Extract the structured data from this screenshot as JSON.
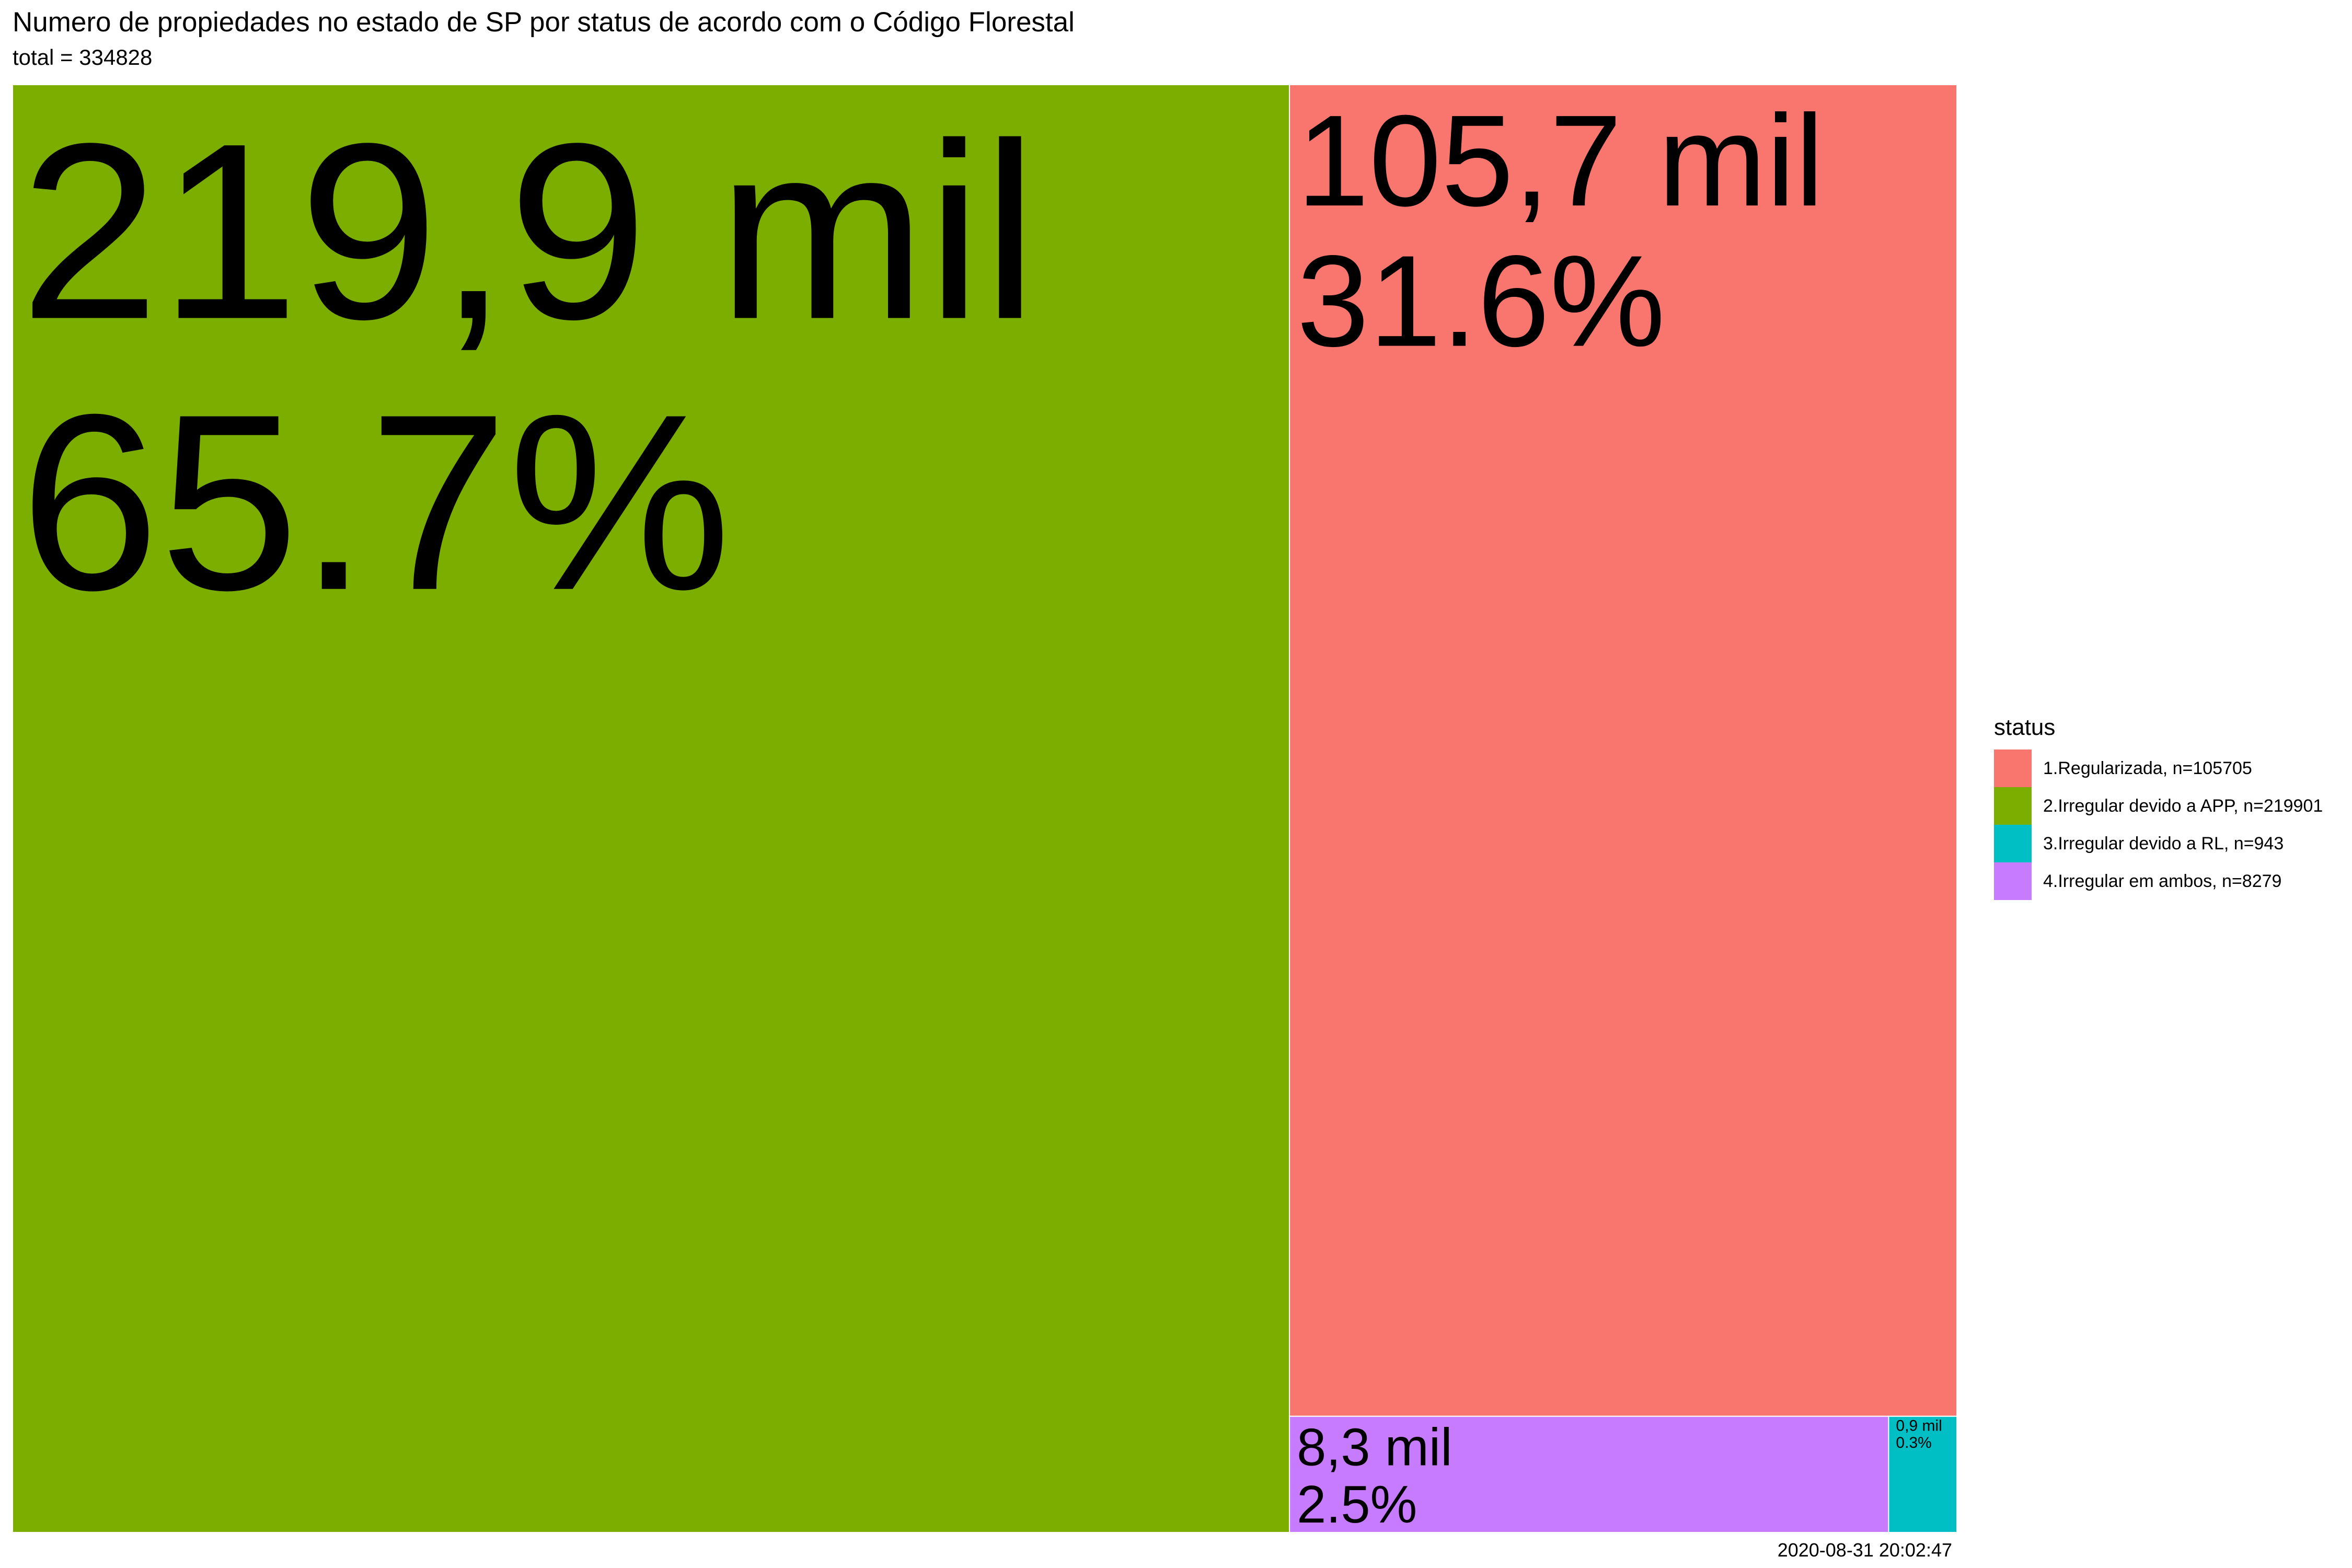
{
  "header": {
    "title": "Numero de propiedades no estado de SP por status de acordo com o Código Florestal",
    "subtitle": "total = 334828"
  },
  "caption": "2020-08-31 20:02:47",
  "legend": {
    "title": "status",
    "items": [
      {
        "label": "1.Regularizada, n=105705",
        "color": "#F8766D"
      },
      {
        "label": "2.Irregular devido a APP, n=219901",
        "color": "#7CAE00"
      },
      {
        "label": "3.Irregular devido a RL, n=943",
        "color": "#00BFC4"
      },
      {
        "label": "4.Irregular em ambos, n=8279",
        "color": "#C77CFF"
      }
    ]
  },
  "chart_data": {
    "type": "treemap",
    "title": "Numero de propiedades no estado de SP por status de acordo com o Código Florestal",
    "subtitle": "total = 334828",
    "total": 334828,
    "legend_title": "status",
    "legend_position": "right",
    "series": [
      {
        "name": "2.Irregular devido a APP",
        "value": 219901,
        "value_label": "219,9 mil",
        "percent_label": "65.7%",
        "color": "#7CAE00"
      },
      {
        "name": "1.Regularizada",
        "value": 105705,
        "value_label": "105,7 mil",
        "percent_label": "31.6%",
        "color": "#F8766D"
      },
      {
        "name": "4.Irregular em ambos",
        "value": 8279,
        "value_label": "8,3 mil",
        "percent_label": "2.5%",
        "color": "#C77CFF"
      },
      {
        "name": "3.Irregular devido a RL",
        "value": 943,
        "value_label": "0,9 mil",
        "percent_label": "0.3%",
        "color": "#00BFC4"
      }
    ]
  }
}
